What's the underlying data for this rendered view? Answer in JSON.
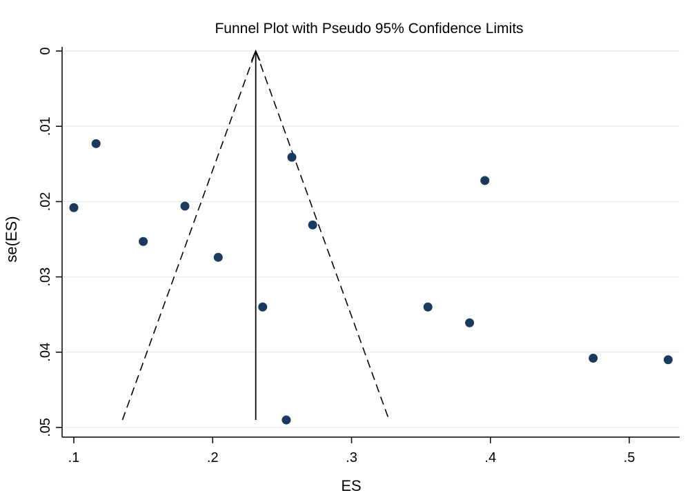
{
  "chart_data": {
    "type": "scatter",
    "title": "Funnel Plot with Pseudo 95% Confidence Limits",
    "xlabel": "ES",
    "ylabel": "se(ES)",
    "xlim": [
      0.1,
      0.53
    ],
    "ylim": [
      0,
      0.05
    ],
    "y_reversed": true,
    "x_ticks": [
      0.1,
      0.2,
      0.3,
      0.4,
      0.5
    ],
    "x_tick_labels": [
      ".1",
      ".2",
      ".3",
      ".4",
      ".5"
    ],
    "y_ticks": [
      0,
      0.01,
      0.02,
      0.03,
      0.04,
      0.05
    ],
    "y_tick_labels": [
      "0",
      ".01",
      ".02",
      ".03",
      ".04",
      ".05"
    ],
    "grid": true,
    "pooled_estimate": 0.231,
    "pseudo_ci_at_se_0.049": [
      0.135,
      0.327
    ],
    "points": [
      {
        "x": 0.1,
        "y": 0.0208
      },
      {
        "x": 0.116,
        "y": 0.0123
      },
      {
        "x": 0.15,
        "y": 0.0253
      },
      {
        "x": 0.18,
        "y": 0.0206
      },
      {
        "x": 0.204,
        "y": 0.0274
      },
      {
        "x": 0.236,
        "y": 0.034
      },
      {
        "x": 0.253,
        "y": 0.049
      },
      {
        "x": 0.257,
        "y": 0.0141
      },
      {
        "x": 0.272,
        "y": 0.0231
      },
      {
        "x": 0.355,
        "y": 0.034
      },
      {
        "x": 0.385,
        "y": 0.0361
      },
      {
        "x": 0.396,
        "y": 0.0172
      },
      {
        "x": 0.474,
        "y": 0.0408
      },
      {
        "x": 0.528,
        "y": 0.041
      }
    ]
  }
}
